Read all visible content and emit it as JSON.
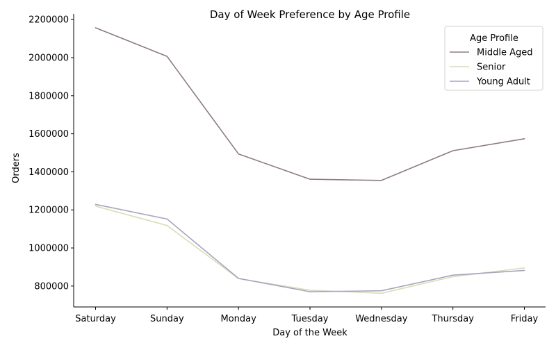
{
  "chart_data": {
    "type": "line",
    "title": "Day of Week Preference by Age Profile",
    "xlabel": "Day of the Week",
    "ylabel": "Orders",
    "categories": [
      "Saturday",
      "Sunday",
      "Monday",
      "Tuesday",
      "Wednesday",
      "Thursday",
      "Friday"
    ],
    "ylim": [
      690000,
      2230000
    ],
    "yticks": [
      800000,
      1000000,
      1200000,
      1400000,
      1600000,
      1800000,
      2000000,
      2200000
    ],
    "ytick_labels": [
      "800000",
      "1000000",
      "1200000",
      "1400000",
      "1600000",
      "1800000",
      "2000000",
      "2200000"
    ],
    "grid": false,
    "legend": {
      "title": "Age Profile",
      "position": "top-right"
    },
    "series": [
      {
        "name": "Middle Aged",
        "color": "#8c7b7f",
        "values": [
          2157000,
          2007000,
          1494000,
          1361000,
          1355000,
          1511000,
          1574000
        ]
      },
      {
        "name": "Senior",
        "color": "#d6dfb4",
        "values": [
          1220000,
          1118000,
          839000,
          778000,
          762000,
          849000,
          895000
        ]
      },
      {
        "name": "Young Adult",
        "color": "#a7a3c3",
        "values": [
          1229000,
          1152000,
          840000,
          770000,
          775000,
          857000,
          882000
        ]
      }
    ]
  }
}
